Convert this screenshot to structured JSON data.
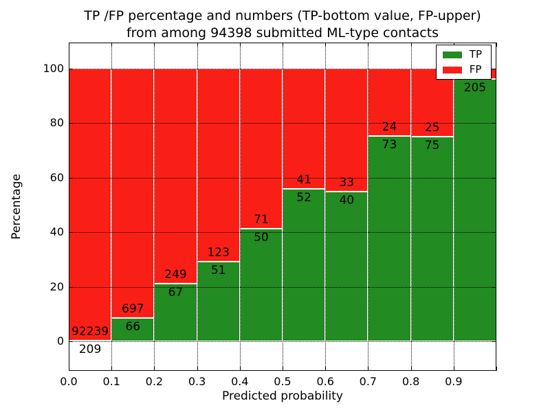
{
  "figure": {
    "title_line1": "TP /FP percentage and numbers (TP-bottom value, FP-upper)",
    "title_line2": "from among 94398 submitted ML-type contacts"
  },
  "axes": {
    "xlabel": "Predicted probability",
    "ylabel": "Percentage",
    "x_tick_labels": [
      "0.0",
      "0.1",
      "0.2",
      "0.3",
      "0.4",
      "0.5",
      "0.6",
      "0.7",
      "0.8",
      "0.9"
    ],
    "x_tick_values": [
      0.0,
      0.1,
      0.2,
      0.3,
      0.4,
      0.5,
      0.6,
      0.7,
      0.8,
      0.9
    ],
    "y_tick_labels": [
      "0",
      "20",
      "40",
      "60",
      "80",
      "100"
    ],
    "y_tick_values": [
      0,
      20,
      40,
      60,
      80,
      100
    ]
  },
  "legend": {
    "items": [
      {
        "label": "TP",
        "color": "#228b22"
      },
      {
        "label": "FP",
        "color": "#fa1f16"
      }
    ]
  },
  "chart_data": {
    "type": "bar",
    "subtype": "stacked-100-percent",
    "title": "TP /FP percentage and numbers (TP-bottom value, FP-upper) from among 94398 submitted ML-type contacts",
    "xlabel": "Predicted probability",
    "ylabel": "Percentage",
    "total_contacts": 94398,
    "bin_edges": [
      0.0,
      0.1,
      0.2,
      0.3,
      0.4,
      0.5,
      0.6,
      0.7,
      0.8,
      0.9,
      1.0
    ],
    "series": [
      {
        "name": "TP",
        "color": "#228b22",
        "values": [
          209,
          66,
          67,
          51,
          50,
          52,
          40,
          73,
          75,
          205
        ]
      },
      {
        "name": "FP",
        "color": "#fa1f16",
        "values": [
          92239,
          697,
          249,
          123,
          71,
          41,
          33,
          24,
          25,
          8
        ]
      }
    ],
    "tp_percent_of_bin": [
      0.23,
      8.65,
      21.2,
      29.31,
      41.32,
      55.91,
      54.79,
      75.26,
      75.0,
      96.24
    ],
    "bar_value_labels": {
      "tp": [
        "209",
        "66",
        "67",
        "51",
        "50",
        "52",
        "40",
        "73",
        "75",
        "205"
      ],
      "fp": [
        "92239",
        "697",
        "249",
        "123",
        "71",
        "41",
        "33",
        "24",
        "25",
        ""
      ]
    },
    "xlim": [
      0.0,
      1.0
    ],
    "ylim": [
      -11,
      110
    ],
    "grid": "dotted, both axes, drawn over bars",
    "legend_position": "upper right",
    "bar_edge_color": "#ffffff"
  }
}
